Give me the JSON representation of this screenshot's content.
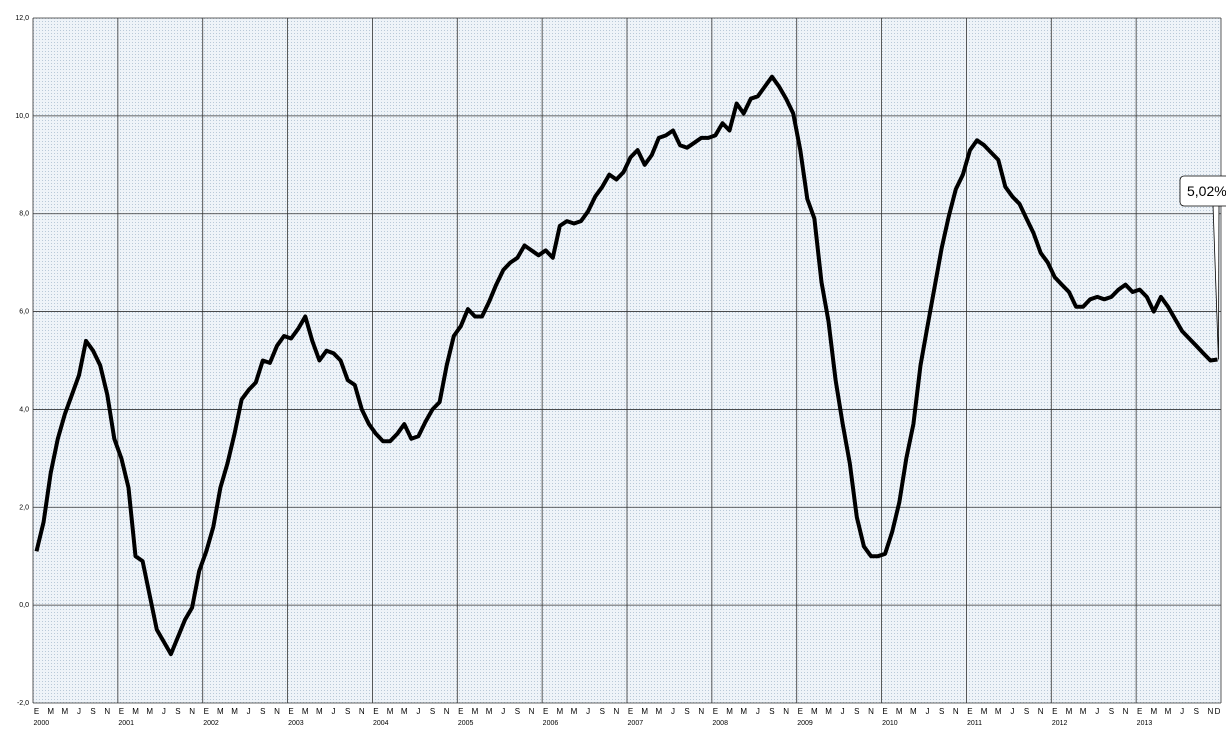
{
  "chart_data": {
    "type": "line",
    "categories": [
      "E",
      null,
      "M",
      null,
      "M",
      null,
      "J",
      null,
      "S",
      null,
      "N",
      null,
      "E",
      null,
      "M",
      null,
      "M",
      null,
      "J",
      null,
      "S",
      null,
      "N",
      null,
      "E",
      null,
      "M",
      null,
      "M",
      null,
      "J",
      null,
      "S",
      null,
      "N",
      null,
      "E",
      null,
      "M",
      null,
      "M",
      null,
      "J",
      null,
      "S",
      null,
      "N",
      null,
      "E",
      null,
      "M",
      null,
      "M",
      null,
      "J",
      null,
      "S",
      null,
      "N",
      null,
      "E",
      null,
      "M",
      null,
      "M",
      null,
      "J",
      null,
      "S",
      null,
      "N",
      null,
      "E",
      null,
      "M",
      null,
      "M",
      null,
      "J",
      null,
      "S",
      null,
      "N",
      null,
      "E",
      null,
      "M",
      null,
      "M",
      null,
      "J",
      null,
      "S",
      null,
      "N",
      null,
      "E",
      null,
      "M",
      null,
      "M",
      null,
      "J",
      null,
      "S",
      null,
      "N",
      null,
      "E",
      null,
      "M",
      null,
      "M",
      null,
      "J",
      null,
      "S",
      null,
      "N",
      null,
      "E",
      null,
      "M",
      null,
      "M",
      null,
      "J",
      null,
      "S",
      null,
      "N",
      null,
      "E",
      null,
      "M",
      null,
      "M",
      null,
      "J",
      null,
      "S",
      null,
      "N",
      null,
      "E",
      null,
      "M",
      null,
      "M",
      null,
      "J",
      null,
      "S",
      null,
      "N",
      null,
      "E",
      null,
      "M",
      null,
      "M",
      null,
      "J",
      null,
      "S",
      null,
      "N",
      "D"
    ],
    "years": [
      "2000",
      "2001",
      "2002",
      "2003",
      "2004",
      "2005",
      "2006",
      "2007",
      "2008",
      "2009",
      "2010",
      "2011",
      "2012",
      "2013"
    ],
    "values": [
      1.1,
      1.7,
      2.7,
      3.4,
      3.9,
      4.3,
      4.7,
      5.4,
      5.2,
      4.9,
      4.3,
      3.4,
      3.0,
      2.4,
      1.0,
      0.9,
      0.2,
      -0.5,
      -0.75,
      -1.0,
      -0.65,
      -0.3,
      -0.05,
      0.7,
      1.1,
      1.6,
      2.4,
      2.9,
      3.5,
      4.2,
      4.4,
      4.55,
      5.0,
      4.95,
      5.3,
      5.5,
      5.45,
      5.65,
      5.9,
      5.4,
      5.0,
      5.2,
      5.15,
      5.0,
      4.6,
      4.5,
      4.0,
      3.7,
      3.5,
      3.35,
      3.35,
      3.5,
      3.7,
      3.4,
      3.45,
      3.75,
      4.0,
      4.15,
      4.9,
      5.5,
      5.7,
      6.05,
      5.9,
      5.9,
      6.2,
      6.55,
      6.85,
      7.0,
      7.1,
      7.35,
      7.25,
      7.15,
      7.25,
      7.1,
      7.75,
      7.85,
      7.8,
      7.85,
      8.05,
      8.35,
      8.55,
      8.8,
      8.7,
      8.85,
      9.15,
      9.3,
      9.0,
      9.2,
      9.55,
      9.6,
      9.7,
      9.4,
      9.35,
      9.45,
      9.55,
      9.55,
      9.6,
      9.85,
      9.7,
      10.25,
      10.05,
      10.35,
      10.4,
      10.6,
      10.8,
      10.6,
      10.35,
      10.05,
      9.3,
      8.3,
      7.9,
      6.6,
      5.8,
      4.6,
      3.7,
      2.9,
      1.8,
      1.2,
      1.0,
      1.0,
      1.05,
      1.5,
      2.1,
      3.0,
      3.7,
      4.9,
      5.7,
      6.5,
      7.3,
      7.95,
      8.5,
      8.8,
      9.3,
      9.5,
      9.4,
      9.25,
      9.1,
      8.55,
      8.35,
      8.2,
      7.9,
      7.6,
      7.2,
      7.0,
      6.7,
      6.55,
      6.4,
      6.1,
      6.1,
      6.25,
      6.3,
      6.25,
      6.3,
      6.45,
      6.55,
      6.4,
      6.45,
      6.3,
      6.0,
      6.3,
      6.1,
      5.85,
      5.6,
      5.45,
      5.3,
      5.15,
      5.0,
      5.02
    ],
    "color": "#000000",
    "annotation": "5,02%",
    "ylim": [
      -2,
      12
    ],
    "yticks": [
      {
        "value": -2,
        "label": "-2,0"
      },
      {
        "value": 0,
        "label": "0,0"
      },
      {
        "value": 2,
        "label": "2,0"
      },
      {
        "value": 4,
        "label": "4,0"
      },
      {
        "value": 6,
        "label": "6,0"
      },
      {
        "value": 8,
        "label": "8,0"
      },
      {
        "value": 10,
        "label": "10,0"
      },
      {
        "value": 12,
        "label": "12,0"
      }
    ],
    "grid": true
  }
}
